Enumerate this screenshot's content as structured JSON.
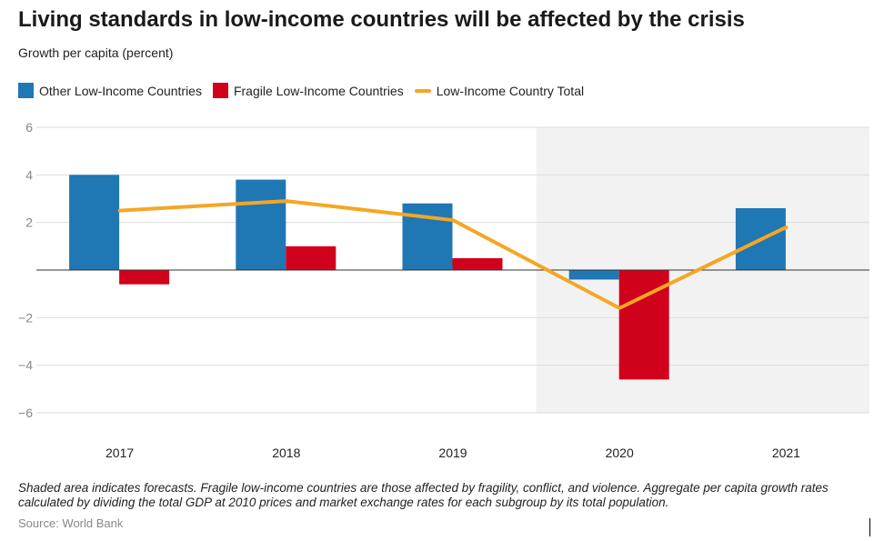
{
  "title": "Living standards in low-income countries will be affected by the crisis",
  "subtitle": "Growth per capita (percent)",
  "legend": {
    "series1": "Other Low-Income Countries",
    "series2": "Fragile Low-Income Countries",
    "series3": "Low-Income Country Total"
  },
  "colors": {
    "other": "#1f77b4",
    "fragile": "#d0021b",
    "total": "#f5a623",
    "forecast_shade": "#f2f2f2"
  },
  "footnote": "Shaded area indicates forecasts. Fragile low-income countries are those affected by fragility, conflict, and violence. Aggregate per capita growth rates calculated by dividing the total GDP at 2010 prices and market exchange rates for each subgroup by its total population.",
  "source": "Source: World Bank",
  "chart_data": {
    "type": "bar",
    "title": "Living standards in low-income countries will be affected by the crisis",
    "ylabel": "Growth per capita (percent)",
    "xlabel": "",
    "categories": [
      "2017",
      "2018",
      "2019",
      "2020",
      "2021"
    ],
    "ylim": [
      -6,
      6
    ],
    "yticks": [
      6,
      4,
      2,
      -2,
      -4,
      -6
    ],
    "ytick_labels": [
      "6",
      "4",
      "2",
      "−2",
      "−4",
      "−6"
    ],
    "forecast_categories": [
      "2020",
      "2021"
    ],
    "series": [
      {
        "name": "Other Low-Income Countries",
        "kind": "bar",
        "values": [
          4.0,
          3.8,
          2.8,
          -0.4,
          2.6
        ]
      },
      {
        "name": "Fragile Low-Income Countries",
        "kind": "bar",
        "values": [
          -0.6,
          1.0,
          0.5,
          -4.6,
          null
        ]
      },
      {
        "name": "Low-Income Country Total",
        "kind": "line",
        "values": [
          2.5,
          2.9,
          2.1,
          -1.6,
          1.8
        ]
      }
    ],
    "grid": true,
    "legend_position": "top-left"
  }
}
